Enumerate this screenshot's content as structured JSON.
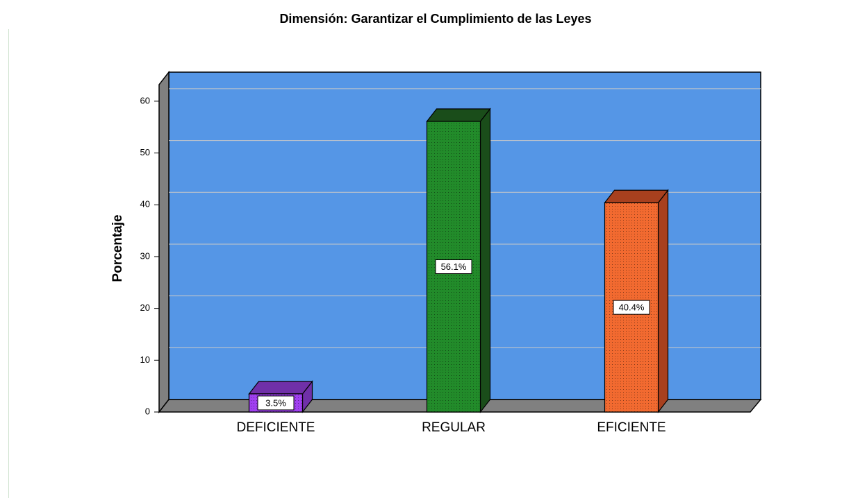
{
  "chart_data": {
    "type": "bar3d",
    "title": "Dimensión: Garantizar el Cumplimiento de las Leyes",
    "y_label": "Porcentaje",
    "categories": [
      "DEFICIENTE",
      "REGULAR",
      "EFICIENTE"
    ],
    "values": [
      3.5,
      56.1,
      40.4
    ],
    "value_labels": [
      "3.5%",
      "56.1%",
      "40.4%"
    ],
    "colors": [
      "#a040f0",
      "#228b2a",
      "#f26a30"
    ],
    "top_colors": [
      "#7030a8",
      "#1a4d1a",
      "#a8401e"
    ],
    "ylim": [
      0,
      63.2
    ],
    "yticks": [
      0,
      10,
      20,
      30,
      40,
      50,
      60
    ],
    "grid": true
  }
}
